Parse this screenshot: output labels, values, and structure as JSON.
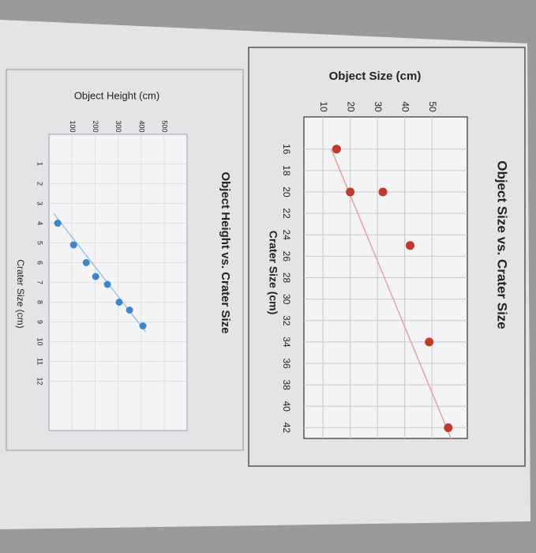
{
  "chart_data": [
    {
      "type": "scatter",
      "title": "Object Size vs. Crater Size",
      "x_label": "Crater Size (cm)",
      "y_label": "Object Size (cm)",
      "x": [
        16,
        20,
        20,
        25,
        34,
        42
      ],
      "values": [
        15,
        20,
        32,
        42,
        49,
        56
      ],
      "color": "#c0392b",
      "trendline": {
        "x": [
          16,
          43
        ],
        "y": [
          13,
          57
        ],
        "color": "#e8a0a0"
      },
      "xlim": [
        13,
        43
      ],
      "xticks": [
        16,
        18,
        20,
        22,
        24,
        26,
        28,
        30,
        32,
        34,
        36,
        38,
        40,
        42
      ],
      "ylim": [
        3,
        63
      ],
      "yticks": [
        10,
        20,
        30,
        40,
        50
      ],
      "grid": true
    },
    {
      "type": "scatter",
      "title": "Object Height vs. Crater Size",
      "x_label": "Crater Size (cm)",
      "y_label": "Object Height (cm)",
      "x": [
        4,
        5.1,
        6,
        6.7,
        7.1,
        8,
        8.4,
        9.2
      ],
      "values": [
        38,
        107,
        162,
        203,
        254,
        305,
        350,
        408
      ],
      "color": "#3a86c8",
      "trendline": {
        "x": [
          3.5,
          9.5
        ],
        "y": [
          20,
          420
        ],
        "color": "#9cc3e4"
      },
      "xlim": [
        -0.5,
        14.5
      ],
      "xticks": [
        1,
        2,
        3,
        4,
        5,
        6,
        7,
        8,
        9,
        10,
        11,
        12
      ],
      "ylim": [
        0,
        600
      ],
      "yticks": [
        100,
        200,
        300,
        400,
        500
      ],
      "grid": true
    }
  ]
}
